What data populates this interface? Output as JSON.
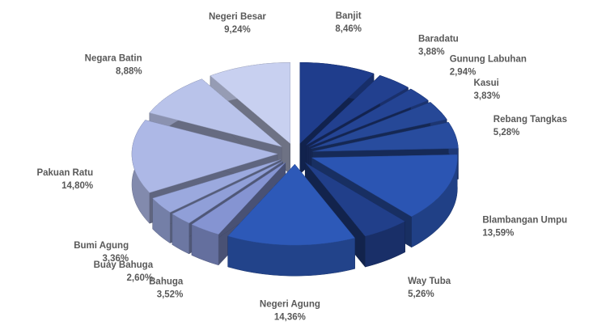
{
  "chart_data": {
    "type": "pie3d",
    "categories": [
      "Banjit",
      "Baradatu",
      "Gunung Labuhan",
      "Kasui",
      "Rebang Tangkas",
      "Blambangan Umpu",
      "Way Tuba",
      "Negeri Agung",
      "Bahuga",
      "Buay Bahuga",
      "Bumi Agung",
      "Pakuan Ratu",
      "Negara Batin",
      "Negeri Besar"
    ],
    "values": [
      8.46,
      3.88,
      2.94,
      3.83,
      5.28,
      13.59,
      5.26,
      14.36,
      3.52,
      2.6,
      3.36,
      14.8,
      8.88,
      9.24
    ],
    "value_labels": [
      "8,46%",
      "3,88%",
      "2,94%",
      "3,83%",
      "5,28%",
      "13,59%",
      "5,26%",
      "14,36%",
      "3,52%",
      "2,60%",
      "3,36%",
      "14,80%",
      "8,88%",
      "9,24%"
    ],
    "colors": [
      "#1f3d8c",
      "#22408f",
      "#244494",
      "#264897",
      "#284c9e",
      "#2b55b3",
      "#213f8a",
      "#2d59b8",
      "#8594d2",
      "#909fd8",
      "#9ba9de",
      "#adb8e6",
      "#b9c3ea",
      "#c8d0f0"
    ]
  }
}
